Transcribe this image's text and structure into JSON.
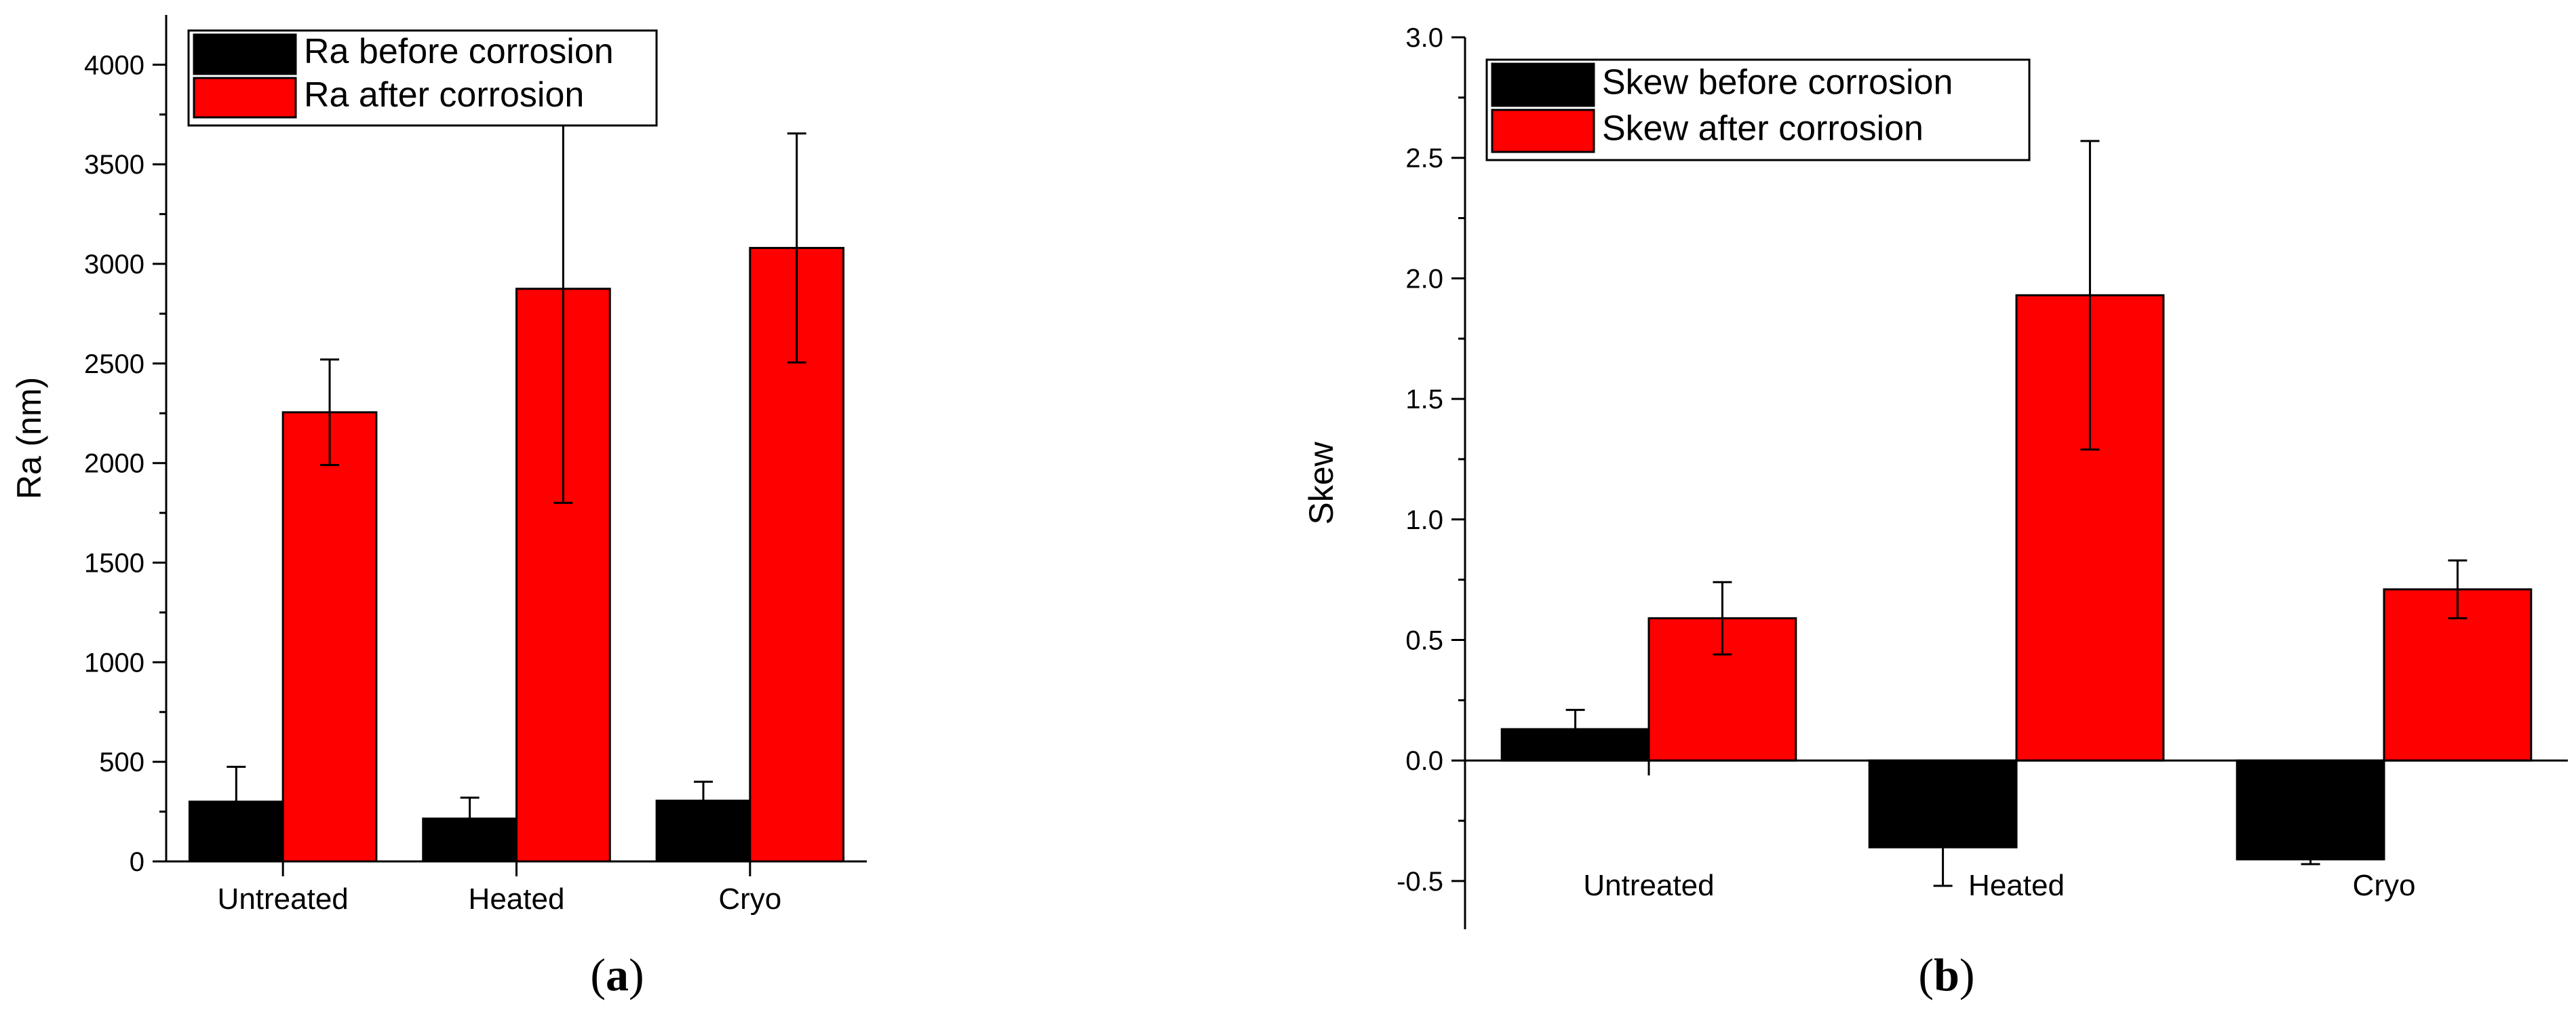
{
  "chart_data": [
    {
      "type": "bar",
      "panel_letter": "a",
      "categories": [
        "Untreated",
        "Heated",
        "Cryo"
      ],
      "series": [
        {
          "name": "Ra before corrosion",
          "color": "#000000",
          "values": [
            300,
            215,
            305
          ],
          "errors": [
            175,
            105,
            95
          ]
        },
        {
          "name": "Ra after corrosion",
          "color": "#ff0000",
          "values": [
            2255,
            2875,
            3080
          ],
          "errors": [
            265,
            1075,
            575
          ]
        }
      ],
      "title": "",
      "xlabel": "",
      "ylabel": "Ra (nm)",
      "ylim": [
        0,
        4250
      ],
      "yticks": [
        0,
        500,
        1000,
        1500,
        2000,
        2500,
        3000,
        3500,
        4000
      ],
      "ytick_labels": [
        "0",
        "500",
        "1000",
        "1500",
        "2000",
        "2500",
        "3000",
        "3500",
        "4000"
      ],
      "legend_position": "top-left",
      "grid": false
    },
    {
      "type": "bar",
      "panel_letter": "b",
      "categories": [
        "Untreated",
        "Heated",
        "Cryo"
      ],
      "series": [
        {
          "name": "Skew before corrosion",
          "color": "#000000",
          "values": [
            0.13,
            -0.36,
            -0.41
          ],
          "errors": [
            0.08,
            0.16,
            0.02
          ]
        },
        {
          "name": "Skew after corrosion",
          "color": "#ff0000",
          "values": [
            0.59,
            1.93,
            0.71
          ],
          "errors": [
            0.15,
            0.64,
            0.12
          ]
        }
      ],
      "title": "",
      "xlabel": "",
      "ylabel": "Skew",
      "ylim": [
        -0.7,
        3.0
      ],
      "yticks": [
        -0.5,
        0.0,
        0.5,
        1.0,
        1.5,
        2.0,
        2.5,
        3.0
      ],
      "ytick_labels": [
        "-0.5",
        "0.0",
        "0.5",
        "1.0",
        "1.5",
        "2.0",
        "2.5",
        "3.0"
      ],
      "legend_position": "top-left",
      "grid": false
    }
  ]
}
